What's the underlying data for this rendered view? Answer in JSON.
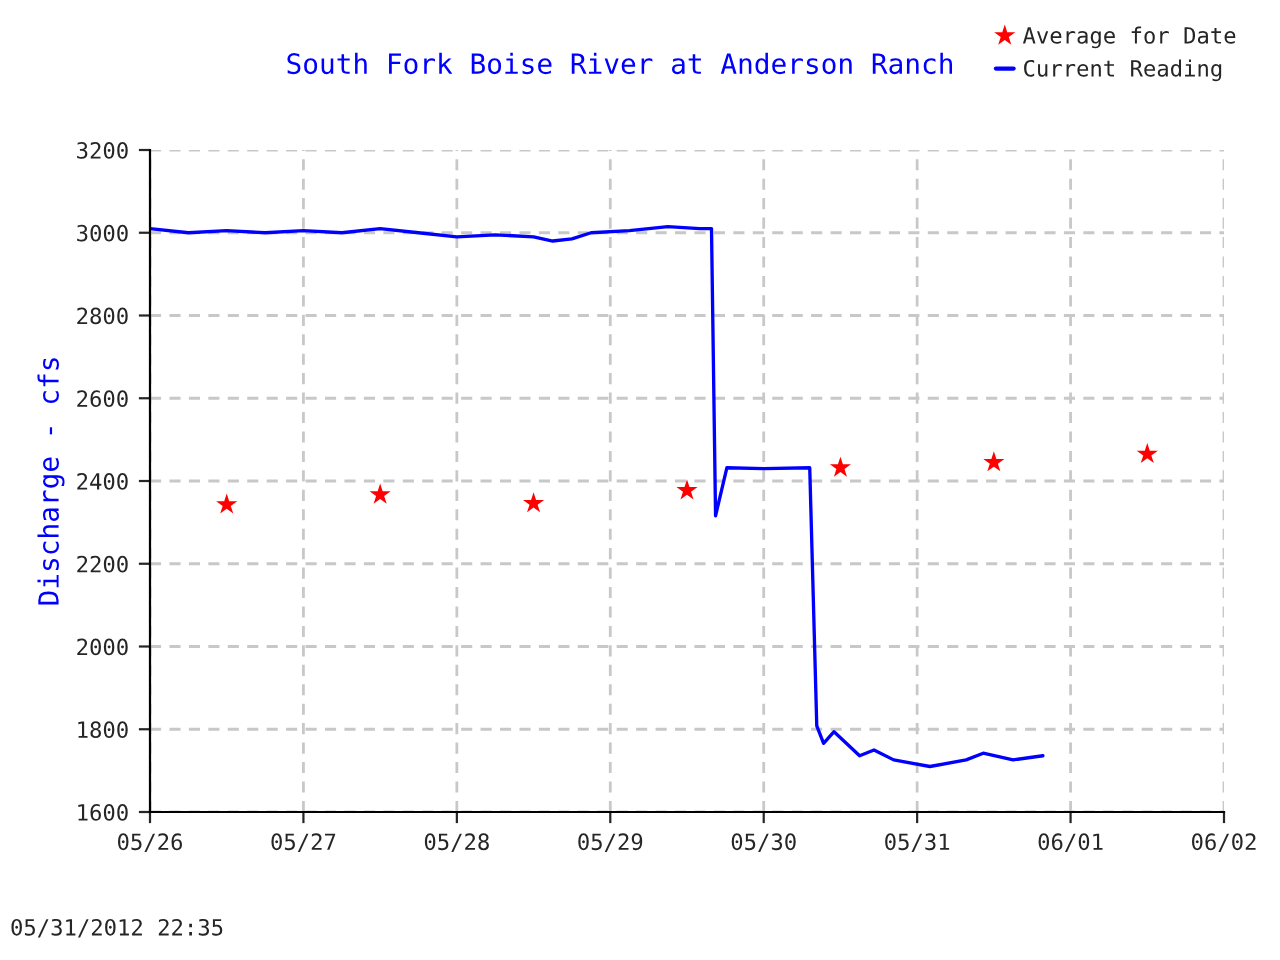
{
  "chart_data": {
    "type": "line",
    "title": "South Fork Boise River at Anderson Ranch",
    "ylabel": "Discharge - cfs",
    "annotations": [
      "05/31/2012 22:35"
    ],
    "series": [
      {
        "name": "Average for Date",
        "type": "scatter",
        "color": "#ff0000",
        "marker": "star",
        "x": [
          "2012-05-26T12:00",
          "2012-05-27T12:00",
          "2012-05-28T12:00",
          "2012-05-29T12:00",
          "2012-05-30T12:00",
          "2012-05-31T12:00",
          "2012-06-01T12:00"
        ],
        "values": [
          2343,
          2367,
          2346,
          2377,
          2432,
          2445,
          2465
        ]
      },
      {
        "name": "Current Reading",
        "color": "#0000ff",
        "x": [
          "2012-05-26T00:00",
          "2012-05-26T06:00",
          "2012-05-26T12:00",
          "2012-05-26T18:00",
          "2012-05-27T00:00",
          "2012-05-27T06:00",
          "2012-05-27T12:00",
          "2012-05-27T18:00",
          "2012-05-28T00:00",
          "2012-05-28T06:00",
          "2012-05-28T12:00",
          "2012-05-28T15:00",
          "2012-05-28T18:00",
          "2012-05-28T21:00",
          "2012-05-29T03:00",
          "2012-05-29T09:00",
          "2012-05-29T14:00",
          "2012-05-29T15:50",
          "2012-05-29T16:28",
          "2012-05-29T18:14",
          "2012-05-30T00:00",
          "2012-05-30T07:12",
          "2012-05-30T08:18",
          "2012-05-30T09:22",
          "2012-05-30T11:00",
          "2012-05-30T15:00",
          "2012-05-30T17:15",
          "2012-05-30T20:20",
          "2012-05-31T02:00",
          "2012-05-31T07:40",
          "2012-05-31T10:20",
          "2012-05-31T15:00",
          "2012-05-31T19:40"
        ],
        "values": [
          3010,
          3000,
          3005,
          3000,
          3005,
          3000,
          3010,
          3000,
          2990,
          2995,
          2990,
          2980,
          2985,
          3000,
          3005,
          3015,
          3010,
          3010,
          2316,
          2432,
          2430,
          2432,
          1808,
          1766,
          1794,
          1736,
          1750,
          1726,
          1710,
          1726,
          1742,
          1726,
          1736
        ]
      }
    ],
    "xlim": [
      "2012-05-26",
      "2012-06-02"
    ],
    "xticks": [
      {
        "value": "2012-05-26",
        "label": "05/26"
      },
      {
        "value": "2012-05-27",
        "label": "05/27"
      },
      {
        "value": "2012-05-28",
        "label": "05/28"
      },
      {
        "value": "2012-05-29",
        "label": "05/29"
      },
      {
        "value": "2012-05-30",
        "label": "05/30"
      },
      {
        "value": "2012-05-31",
        "label": "05/31"
      },
      {
        "value": "2012-06-01",
        "label": "06/01"
      },
      {
        "value": "2012-06-02",
        "label": "06/02"
      }
    ],
    "ylim": [
      1600,
      3200
    ],
    "yticks": [
      1600,
      1800,
      2000,
      2200,
      2400,
      2600,
      2800,
      3000,
      3200
    ],
    "grid": true,
    "legend": "top right",
    "line_style": "solid"
  }
}
